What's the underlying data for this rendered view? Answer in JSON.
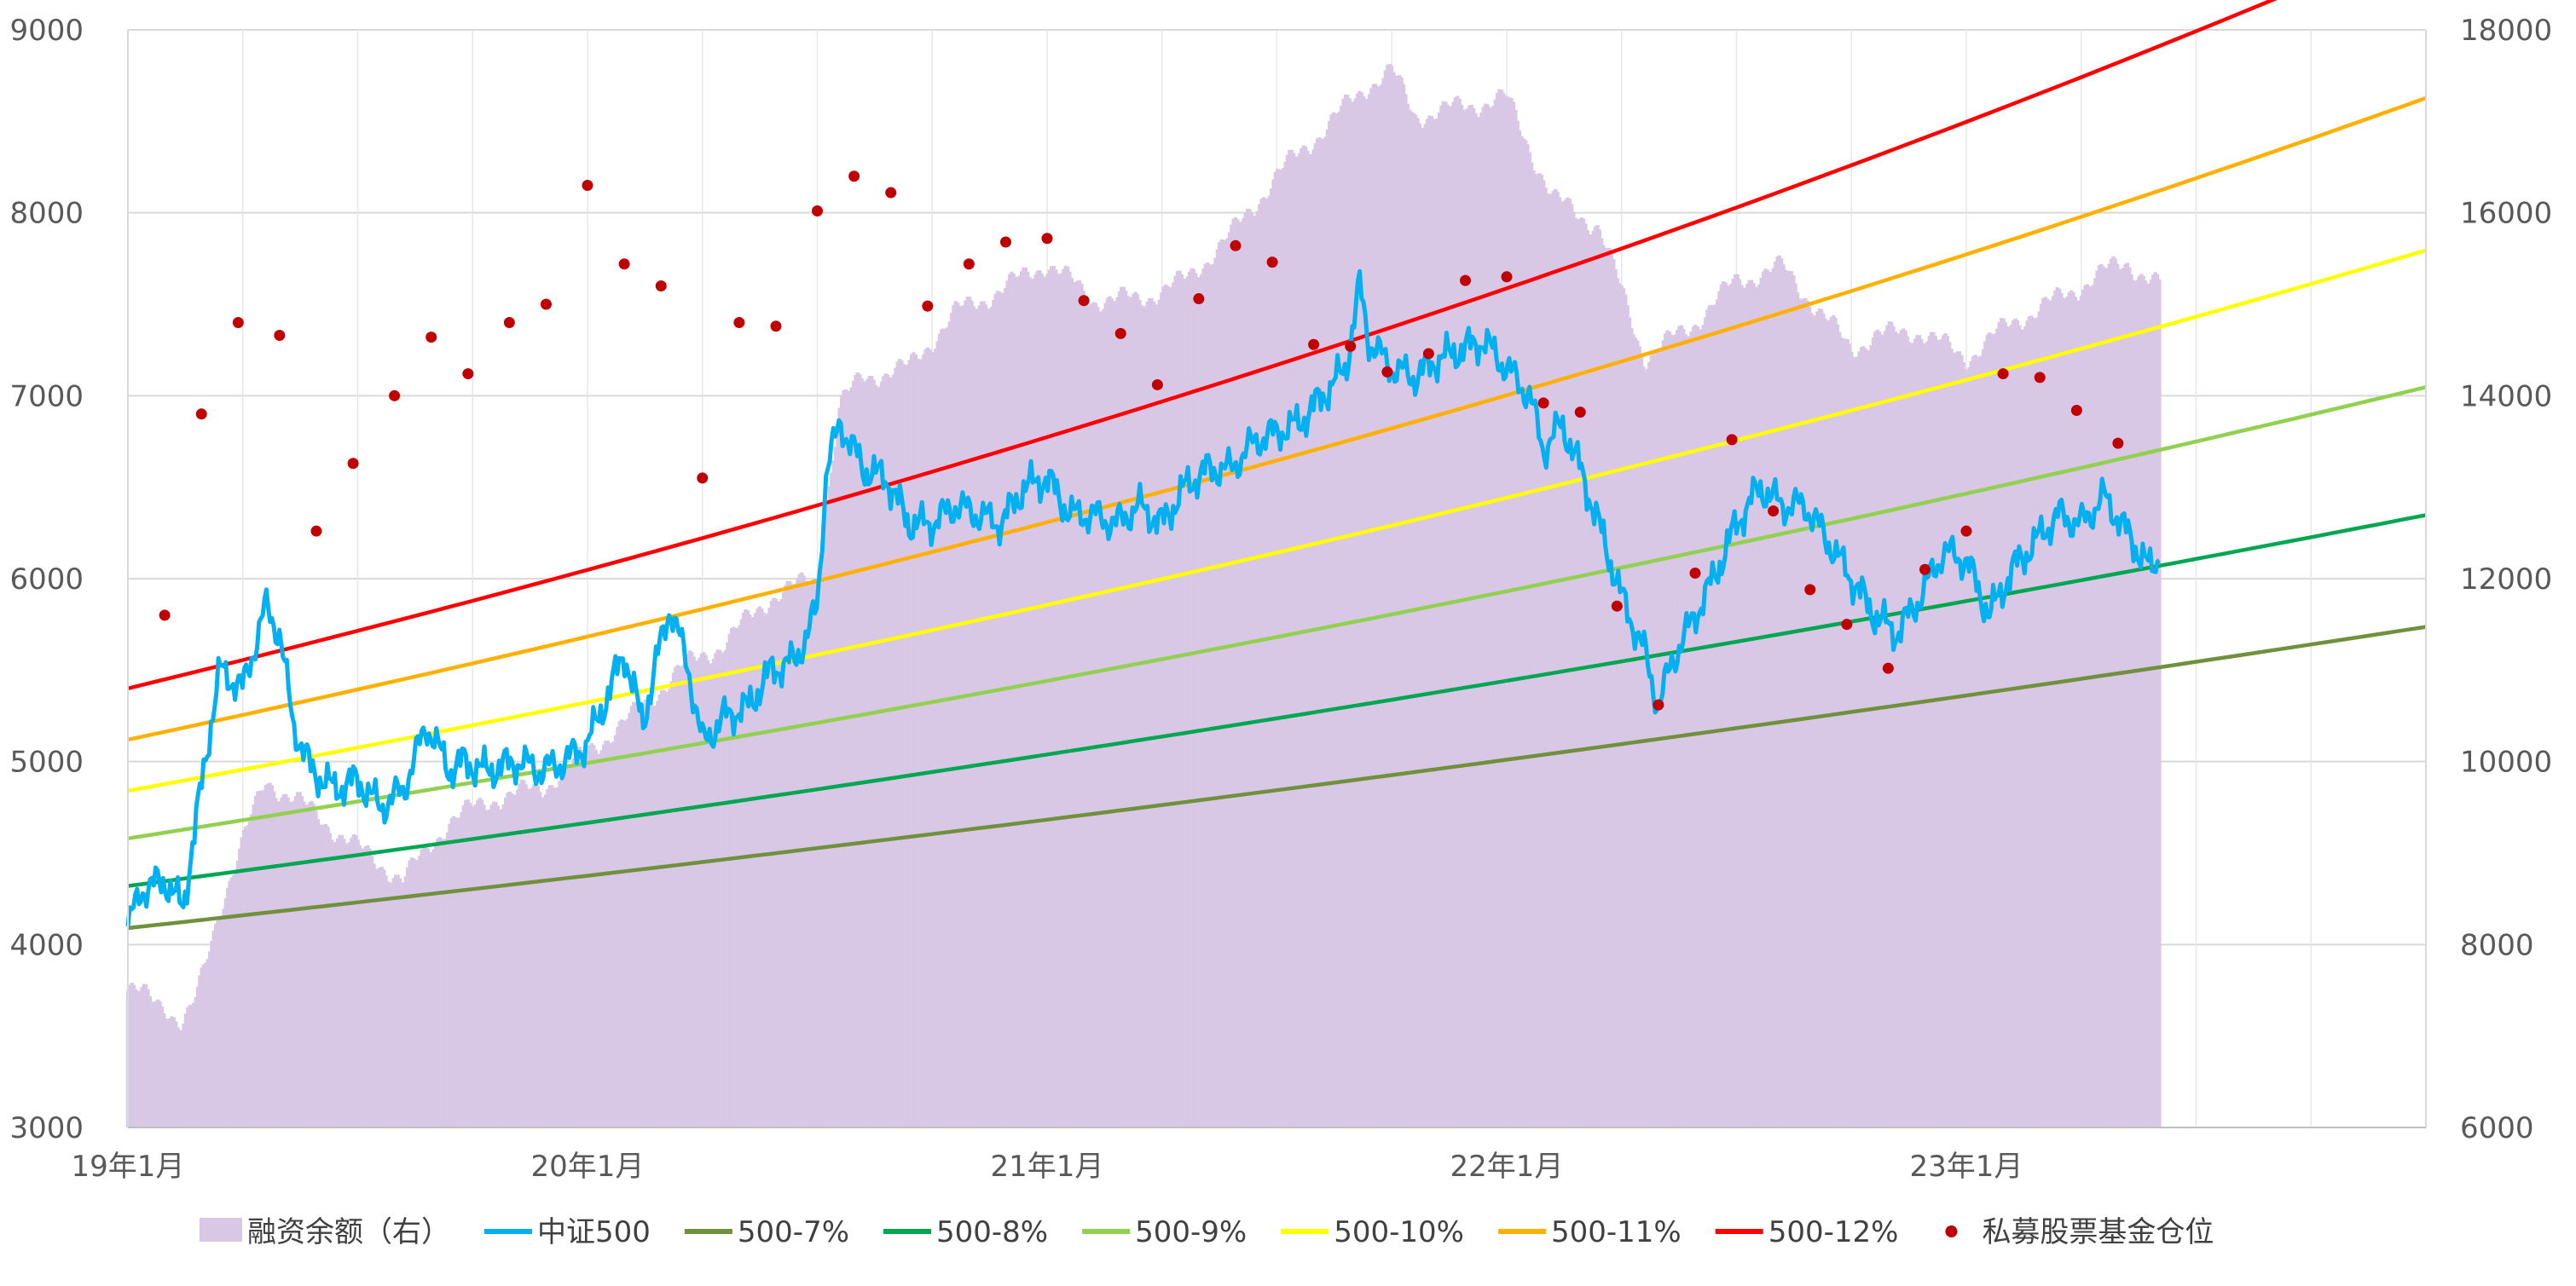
{
  "chart_data": {
    "type": "combo",
    "title": "",
    "left_axis": {
      "min": 3000,
      "max": 9000,
      "step": 1000,
      "ticks": [
        "3000",
        "4000",
        "5000",
        "6000",
        "7000",
        "8000",
        "9000"
      ]
    },
    "right_axis": {
      "min": 6000,
      "max": 18000,
      "step": 2000,
      "ticks": [
        "6000",
        "8000",
        "10000",
        "12000",
        "14000",
        "16000",
        "18000"
      ]
    },
    "x_axis": {
      "range_years": [
        2019.0,
        2024.0
      ],
      "tick_years": [
        2019,
        2020,
        2021,
        2022,
        2023
      ],
      "tick_labels": [
        "19年1月",
        "20年1月",
        "21年1月",
        "22年1月",
        "23年1月"
      ]
    },
    "grid": true,
    "legend_position": "bottom",
    "series": [
      {
        "name": "融资余额（右）",
        "kind": "bar",
        "axis": "right",
        "color": "#D9C7E6",
        "x": [
          2019.0,
          2019.08,
          2019.12,
          2019.15,
          2019.2,
          2019.3,
          2019.4,
          2019.5,
          2019.6,
          2019.7,
          2019.8,
          2019.9,
          2020.0,
          2020.1,
          2020.2,
          2020.3,
          2020.4,
          2020.5,
          2020.55,
          2020.6,
          2020.7,
          2020.8,
          2020.9,
          2021.0,
          2021.1,
          2021.2,
          2021.3,
          2021.4,
          2021.5,
          2021.6,
          2021.7,
          2021.75,
          2021.8,
          2021.9,
          2022.0,
          2022.1,
          2022.2,
          2022.3,
          2022.4,
          2022.5,
          2022.6,
          2022.7,
          2022.75,
          2022.8,
          2022.9,
          2023.0,
          2023.1,
          2023.2,
          2023.3,
          2023.35,
          2023.42
        ],
        "values": [
          7500,
          7350,
          7100,
          7400,
          8400,
          9800,
          9450,
          9050,
          8700,
          9350,
          9600,
          9700,
          10100,
          10500,
          11000,
          11300,
          11800,
          12000,
          13900,
          14200,
          14300,
          14900,
          15150,
          15450,
          15050,
          15050,
          15250,
          15750,
          16400,
          16900,
          17400,
          17550,
          17050,
          17150,
          17250,
          16150,
          15850,
          14400,
          14750,
          15250,
          15400,
          14800,
          14500,
          14650,
          14700,
          14400,
          14800,
          15050,
          15350,
          15450,
          15200
        ]
      },
      {
        "name": "中证500",
        "kind": "line",
        "axis": "left",
        "color": "#00B0F0",
        "x": [
          2019.0,
          2019.03,
          2019.08,
          2019.12,
          2019.15,
          2019.18,
          2019.2,
          2019.25,
          2019.3,
          2019.33,
          2019.36,
          2019.4,
          2019.45,
          2019.5,
          2019.55,
          2019.6,
          2019.65,
          2019.7,
          2019.73,
          2019.78,
          2019.85,
          2019.9,
          2019.95,
          2020.0,
          2020.05,
          2020.08,
          2020.12,
          2020.15,
          2020.18,
          2020.22,
          2020.25,
          2020.3,
          2020.35,
          2020.4,
          2020.45,
          2020.48,
          2020.5,
          2020.52,
          2020.55,
          2020.6,
          2020.65,
          2020.7,
          2020.75,
          2020.8,
          2020.85,
          2020.9,
          2020.95,
          2021.0,
          2021.05,
          2021.1,
          2021.15,
          2021.2,
          2021.25,
          2021.3,
          2021.35,
          2021.4,
          2021.45,
          2021.5,
          2021.55,
          2021.6,
          2021.65,
          2021.68,
          2021.7,
          2021.75,
          2021.8,
          2021.85,
          2021.9,
          2021.95,
          2022.0,
          2022.05,
          2022.08,
          2022.12,
          2022.16,
          2022.2,
          2022.25,
          2022.3,
          2022.33,
          2022.36,
          2022.4,
          2022.45,
          2022.5,
          2022.55,
          2022.6,
          2022.65,
          2022.7,
          2022.75,
          2022.8,
          2022.85,
          2022.9,
          2022.95,
          2023.0,
          2023.05,
          2023.1,
          2023.15,
          2023.2,
          2023.25,
          2023.3,
          2023.35,
          2023.4,
          2023.42
        ],
        "values": [
          4100,
          4300,
          4350,
          4200,
          4700,
          5200,
          5500,
          5400,
          5850,
          5700,
          5200,
          4950,
          4850,
          4900,
          4750,
          4850,
          5200,
          4950,
          5000,
          4950,
          5000,
          4950,
          5000,
          5100,
          5400,
          5600,
          5200,
          5550,
          5850,
          5500,
          5100,
          5250,
          5300,
          5500,
          5550,
          5700,
          5850,
          6600,
          6850,
          6600,
          6550,
          6300,
          6300,
          6400,
          6350,
          6300,
          6500,
          6550,
          6350,
          6350,
          6300,
          6400,
          6300,
          6500,
          6600,
          6600,
          6750,
          6800,
          6850,
          7000,
          7150,
          7600,
          7300,
          7150,
          7100,
          7200,
          7250,
          7300,
          7150,
          7000,
          6700,
          6850,
          6600,
          6300,
          5900,
          5600,
          5300,
          5550,
          5750,
          6000,
          6300,
          6500,
          6400,
          6400,
          6200,
          6000,
          5800,
          5700,
          5900,
          6150,
          6100,
          5800,
          6050,
          6200,
          6350,
          6300,
          6450,
          6250,
          6050,
          6100
        ]
      },
      {
        "name": "500-7%",
        "kind": "line",
        "axis": "left",
        "color": "#70903C",
        "start": 4090,
        "annual_growth": 0.07
      },
      {
        "name": "500-8%",
        "kind": "line",
        "axis": "left",
        "color": "#00A651",
        "start": 4320,
        "annual_growth": 0.08
      },
      {
        "name": "500-9%",
        "kind": "line",
        "axis": "left",
        "color": "#92D050",
        "start": 4580,
        "annual_growth": 0.09
      },
      {
        "name": "500-10%",
        "kind": "line",
        "axis": "left",
        "color": "#FFFF00",
        "start": 4840,
        "annual_growth": 0.1
      },
      {
        "name": "500-11%",
        "kind": "line",
        "axis": "left",
        "color": "#FFB000",
        "start": 5120,
        "annual_growth": 0.11
      },
      {
        "name": "500-12%",
        "kind": "line",
        "axis": "left",
        "color": "#FF0000",
        "start": 5400,
        "annual_growth": 0.12
      },
      {
        "name": "私募股票基金仓位",
        "kind": "scatter",
        "axis": "left",
        "color": "#C00000",
        "x": [
          2019.08,
          2019.16,
          2019.24,
          2019.33,
          2019.41,
          2019.49,
          2019.58,
          2019.66,
          2019.74,
          2019.83,
          2019.91,
          2020.0,
          2020.08,
          2020.16,
          2020.25,
          2020.33,
          2020.41,
          2020.5,
          2020.58,
          2020.66,
          2020.74,
          2020.83,
          2020.91,
          2021.0,
          2021.08,
          2021.16,
          2021.24,
          2021.33,
          2021.41,
          2021.49,
          2021.58,
          2021.66,
          2021.74,
          2021.83,
          2021.91,
          2022.0,
          2022.08,
          2022.16,
          2022.24,
          2022.33,
          2022.41,
          2022.49,
          2022.58,
          2022.66,
          2022.74,
          2022.83,
          2022.91,
          2023.0,
          2023.08,
          2023.16,
          2023.24,
          2023.33
        ],
        "values": [
          5800,
          6900,
          7400,
          7330,
          6260,
          6630,
          7000,
          7320,
          7120,
          7400,
          7500,
          8150,
          7720,
          7600,
          6550,
          7400,
          7380,
          8010,
          8200,
          8110,
          7490,
          7720,
          7840,
          7860,
          7520,
          7340,
          7060,
          7530,
          7820,
          7730,
          7280,
          7270,
          7130,
          7230,
          7630,
          7650,
          6960,
          6910,
          5850,
          5310,
          6030,
          6760,
          6370,
          5940,
          5750,
          5510,
          6050,
          6260,
          7120,
          7100,
          6920,
          6740
        ]
      }
    ]
  }
}
